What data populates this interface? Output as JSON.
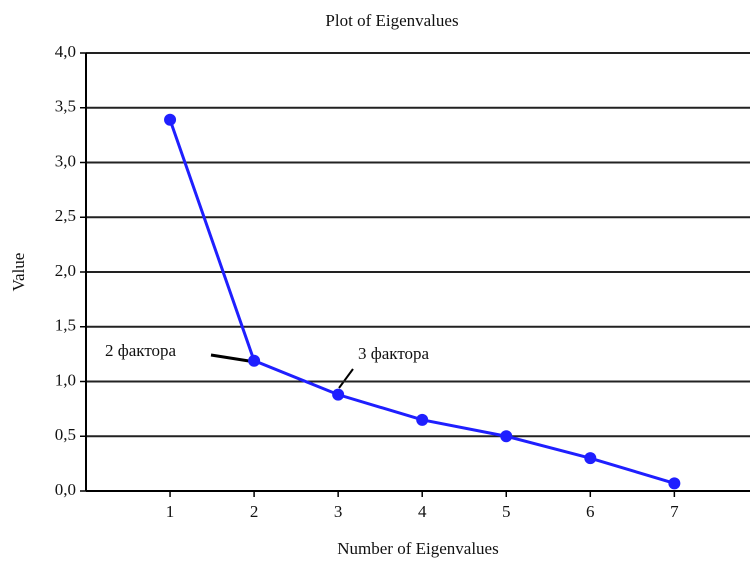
{
  "chart_data": {
    "type": "line",
    "title": "Plot of Eigenvalues",
    "x_label": "Number of Eigenvalues",
    "y_label": "Value",
    "x": [
      1,
      2,
      3,
      4,
      5,
      6,
      7
    ],
    "series": [
      {
        "name": "Eigenvalues",
        "color": "#1f1fff",
        "values": [
          3.39,
          1.19,
          0.88,
          0.65,
          0.5,
          0.3,
          0.07
        ]
      }
    ],
    "xlim": [
      0,
      7.9
    ],
    "xticks": [
      1,
      2,
      3,
      4,
      5,
      6,
      7
    ],
    "ylim": [
      0,
      4
    ],
    "yticks": [
      {
        "value": 0,
        "label": "0,0"
      },
      {
        "value": 0.5,
        "label": "0,5"
      },
      {
        "value": 1,
        "label": "1,0"
      },
      {
        "value": 1.5,
        "label": "1,5"
      },
      {
        "value": 2,
        "label": "2,0"
      },
      {
        "value": 2.5,
        "label": "2,5"
      },
      {
        "value": 3,
        "label": "3,0"
      },
      {
        "value": 3.5,
        "label": "3,5"
      },
      {
        "value": 4,
        "label": "4,0"
      }
    ],
    "grid": true,
    "annotations": [
      "2 фактора",
      "3 фактора"
    ]
  }
}
